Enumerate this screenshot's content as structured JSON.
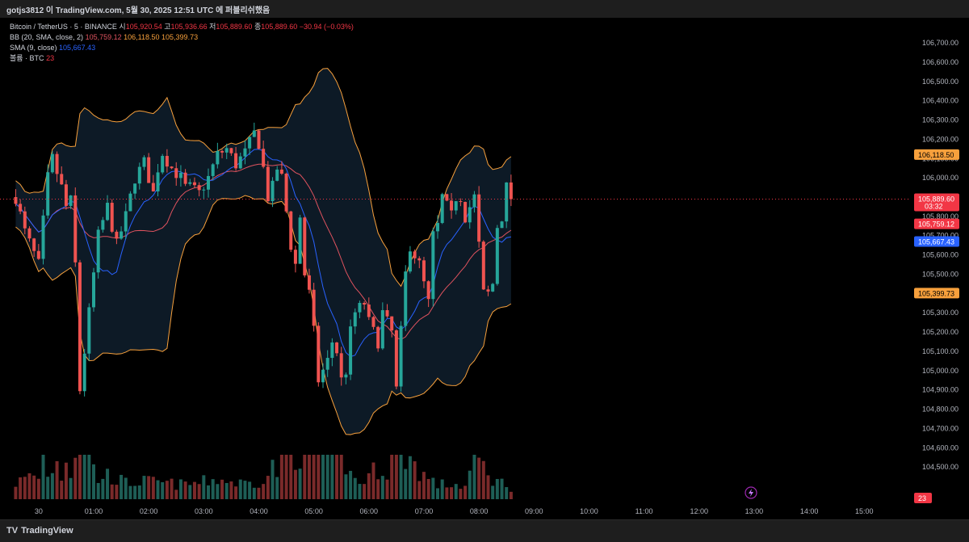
{
  "header": {
    "text": "gotjs3812 이 TradingView.com, 5월 30, 2025 12:51 UTC 에 퍼블리쉬했음"
  },
  "legend": {
    "symbol": "Bitcoin / TetherUS · 5 · BINANCE",
    "o_label": "시",
    "o_value": "105,920.54",
    "h_label": "고",
    "h_value": "105,936.66",
    "l_label": "저",
    "l_value": "105,889.60",
    "c_label": "종",
    "c_value": "105,889.60",
    "change": "−30.94 (−0.03%)",
    "bb_label": "BB (20, SMA, close, 2)",
    "bb_mid": "105,759.12",
    "bb_upper": "106,118.50",
    "bb_lower": "105,399.73",
    "sma_label": "SMA (9, close)",
    "sma_value": "105,667.43",
    "vol_label": "볼륨 · BTC",
    "vol_value": "23"
  },
  "footer": {
    "brand": "TradingView",
    "logo": "TV"
  },
  "colors": {
    "up": "#26a69a",
    "down": "#ef5350",
    "bb_outer": "#f7a03c",
    "bb_mid": "#e0535f",
    "sma": "#2962ff",
    "band_fill": "#0d1a26"
  },
  "chart_data": {
    "type": "candlestick",
    "symbol": "BTCUSDT",
    "interval": "5",
    "ylim": [
      104400,
      106780
    ],
    "y_ticks": [
      106700,
      106600,
      106500,
      106400,
      106300,
      106200,
      106100,
      106000,
      105900,
      105800,
      105700,
      105600,
      105500,
      105400,
      105300,
      105200,
      105100,
      105000,
      104900,
      104800,
      104700,
      104600,
      104500
    ],
    "y_tick_labels": [
      "106,700.00",
      "106,600.00",
      "106,500.00",
      "106,400.00",
      "106,300.00",
      "106,200.00",
      "106,100.00",
      "106,000.00",
      "105,900.00",
      "105,800.00",
      "105,700.00",
      "105,600.00",
      "105,500.00",
      "105,400.00",
      "105,300.00",
      "105,200.00",
      "105,100.00",
      "105,000.00",
      "104,900.00",
      "104,800.00",
      "104,700.00",
      "104,600.00",
      "104,500.00"
    ],
    "x_ticks": [
      {
        "label": "30",
        "bar": -5
      },
      {
        "label": "01:00",
        "bar": 7
      },
      {
        "label": "02:00",
        "bar": 19
      },
      {
        "label": "03:00",
        "bar": 31
      },
      {
        "label": "04:00",
        "bar": 43
      },
      {
        "label": "05:00",
        "bar": 55
      },
      {
        "label": "06:00",
        "bar": 67
      },
      {
        "label": "07:00",
        "bar": 79
      },
      {
        "label": "08:00",
        "bar": 91
      },
      {
        "label": "09:00",
        "bar": 103
      },
      {
        "label": "10:00",
        "bar": 115
      },
      {
        "label": "11:00",
        "bar": 127
      },
      {
        "label": "12:00",
        "bar": 139
      },
      {
        "label": "13:00",
        "bar": 151
      },
      {
        "label": "14:00",
        "bar": 163
      },
      {
        "label": "15:00",
        "bar": 175
      }
    ],
    "price_labels": [
      {
        "value": 106118.5,
        "text": "106,118.50",
        "color": "#f7a03c",
        "text_color": "#000000"
      },
      {
        "value": 105889.6,
        "text": "105,889.60",
        "sub": "03:32",
        "color": "#f23645",
        "text_color": "#ffffff"
      },
      {
        "value": 105759.12,
        "text": "105,759.12",
        "color": "#f23645",
        "text_color": "#ffffff"
      },
      {
        "value": 105667.43,
        "text": "105,667.43",
        "color": "#2962ff",
        "text_color": "#ffffff"
      },
      {
        "value": 105399.73,
        "text": "105,399.73",
        "color": "#f7a03c",
        "text_color": "#000000"
      }
    ],
    "volume_label": "23",
    "anchors": {
      "close": [
        [
          -10,
          105900
        ],
        [
          -8,
          105720
        ],
        [
          -5,
          105550
        ],
        [
          -3,
          106000
        ],
        [
          -2,
          106100
        ],
        [
          0,
          105950
        ],
        [
          1,
          105850
        ],
        [
          2,
          105880
        ],
        [
          3,
          105550
        ],
        [
          4,
          104900
        ],
        [
          5,
          105100
        ],
        [
          6,
          105300
        ],
        [
          8,
          105700
        ],
        [
          10,
          105850
        ],
        [
          12,
          105650
        ],
        [
          14,
          105800
        ],
        [
          16,
          106000
        ],
        [
          18,
          106080
        ],
        [
          19,
          106000
        ],
        [
          20,
          105920
        ],
        [
          21,
          106050
        ],
        [
          22,
          106130
        ],
        [
          24,
          106050
        ],
        [
          26,
          106000
        ],
        [
          27,
          105950
        ],
        [
          28,
          105950
        ],
        [
          30,
          105920
        ],
        [
          32,
          106000
        ],
        [
          34,
          106120
        ],
        [
          36,
          106150
        ],
        [
          38,
          106070
        ],
        [
          40,
          106130
        ],
        [
          42,
          106230
        ],
        [
          43,
          106180
        ],
        [
          44,
          106050
        ],
        [
          45,
          105900
        ],
        [
          46,
          105950
        ],
        [
          47,
          106050
        ],
        [
          48,
          106000
        ],
        [
          50,
          105650
        ],
        [
          51,
          105550
        ],
        [
          52,
          105800
        ],
        [
          53,
          105500
        ],
        [
          54,
          105400
        ],
        [
          55,
          105200
        ],
        [
          56,
          104950
        ],
        [
          58,
          105050
        ],
        [
          59,
          105150
        ],
        [
          60,
          105100
        ],
        [
          61,
          104950
        ],
        [
          62,
          105000
        ],
        [
          63,
          105200
        ],
        [
          64,
          105300
        ],
        [
          66,
          105350
        ],
        [
          67,
          105250
        ],
        [
          69,
          105150
        ],
        [
          70,
          105300
        ],
        [
          72,
          105200
        ],
        [
          73,
          104900
        ],
        [
          74,
          105200
        ],
        [
          75,
          105500
        ],
        [
          76,
          105650
        ],
        [
          78,
          105550
        ],
        [
          80,
          105350
        ],
        [
          81,
          105700
        ],
        [
          82,
          105750
        ],
        [
          83,
          105900
        ],
        [
          85,
          105800
        ],
        [
          86,
          105900
        ],
        [
          87,
          105900
        ],
        [
          88,
          105800
        ],
        [
          89,
          105850
        ],
        [
          90,
          105900
        ],
        [
          91,
          105650
        ],
        [
          92,
          105400
        ],
        [
          93,
          105400
        ],
        [
          94,
          105450
        ],
        [
          95,
          105750
        ],
        [
          96,
          105800
        ],
        [
          97,
          105950
        ],
        [
          98,
          105890
        ]
      ],
      "volume": [
        [
          -10,
          20
        ],
        [
          -6,
          30
        ],
        [
          -5,
          25
        ],
        [
          -4,
          55
        ],
        [
          -3,
          32
        ],
        [
          -1,
          45
        ],
        [
          0,
          28
        ],
        [
          1,
          60
        ],
        [
          2,
          30
        ],
        [
          3,
          70
        ],
        [
          4,
          120
        ],
        [
          5,
          70
        ],
        [
          6,
          50
        ],
        [
          8,
          25
        ],
        [
          10,
          30
        ],
        [
          14,
          20
        ],
        [
          18,
          22
        ],
        [
          22,
          20
        ],
        [
          26,
          18
        ],
        [
          30,
          20
        ],
        [
          34,
          25
        ],
        [
          38,
          20
        ],
        [
          42,
          20
        ],
        [
          45,
          30
        ],
        [
          46,
          40
        ],
        [
          47,
          35
        ],
        [
          49,
          55
        ],
        [
          51,
          55
        ],
        [
          53,
          70
        ],
        [
          55,
          75
        ],
        [
          57,
          85
        ],
        [
          59,
          80
        ],
        [
          61,
          60
        ],
        [
          63,
          30
        ],
        [
          65,
          20
        ],
        [
          67,
          28
        ],
        [
          69,
          40
        ],
        [
          71,
          35
        ],
        [
          73,
          75
        ],
        [
          74,
          60
        ],
        [
          76,
          50
        ],
        [
          78,
          35
        ],
        [
          80,
          25
        ],
        [
          82,
          18
        ],
        [
          86,
          18
        ],
        [
          88,
          15
        ],
        [
          90,
          55
        ],
        [
          92,
          40
        ],
        [
          94,
          25
        ],
        [
          96,
          20
        ],
        [
          98,
          15
        ]
      ]
    }
  }
}
